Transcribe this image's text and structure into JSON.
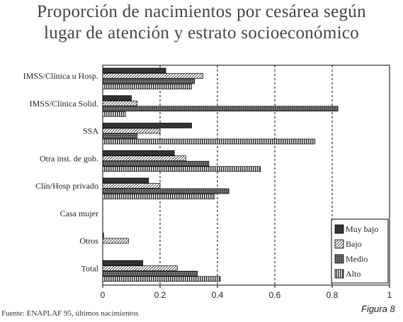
{
  "chart_data": {
    "type": "bar",
    "orientation": "horizontal",
    "title_line1": "Proporción de nacimientos por cesárea según",
    "title_line2": "lugar de atención y estrato socioeconómico",
    "categories": [
      "IMSS/Clínica u Hosp.",
      "IMSS/Clínica Solid.",
      "SSA",
      "Otra inst. de gob.",
      "Clín/Hosp privado",
      "Casa mujer",
      "Otros",
      "Total"
    ],
    "series": [
      {
        "name": "Muy bajo",
        "values": [
          0.22,
          0.1,
          0.31,
          0.25,
          0.16,
          0,
          0.003,
          0.14
        ]
      },
      {
        "name": "Bajo",
        "values": [
          0.35,
          0.12,
          0.2,
          0.29,
          0.2,
          0,
          0.09,
          0.26
        ]
      },
      {
        "name": "Medio",
        "values": [
          0.32,
          0.82,
          0.12,
          0.37,
          0.44,
          0,
          0,
          0.33
        ]
      },
      {
        "name": "Alto",
        "values": [
          0.31,
          0.08,
          0.74,
          0.55,
          0.39,
          0,
          0,
          0.41
        ]
      }
    ],
    "xlim": [
      0,
      1
    ],
    "xticks": [
      "0",
      "0.2",
      "0.4",
      "0.6",
      "0.8",
      "1"
    ],
    "grid": "vertical dashed",
    "legend_position": "bottom-right",
    "source_note": "Fuente: ENAPLAF 95, últimos nacimientos",
    "figure_label": "Figura 8"
  }
}
